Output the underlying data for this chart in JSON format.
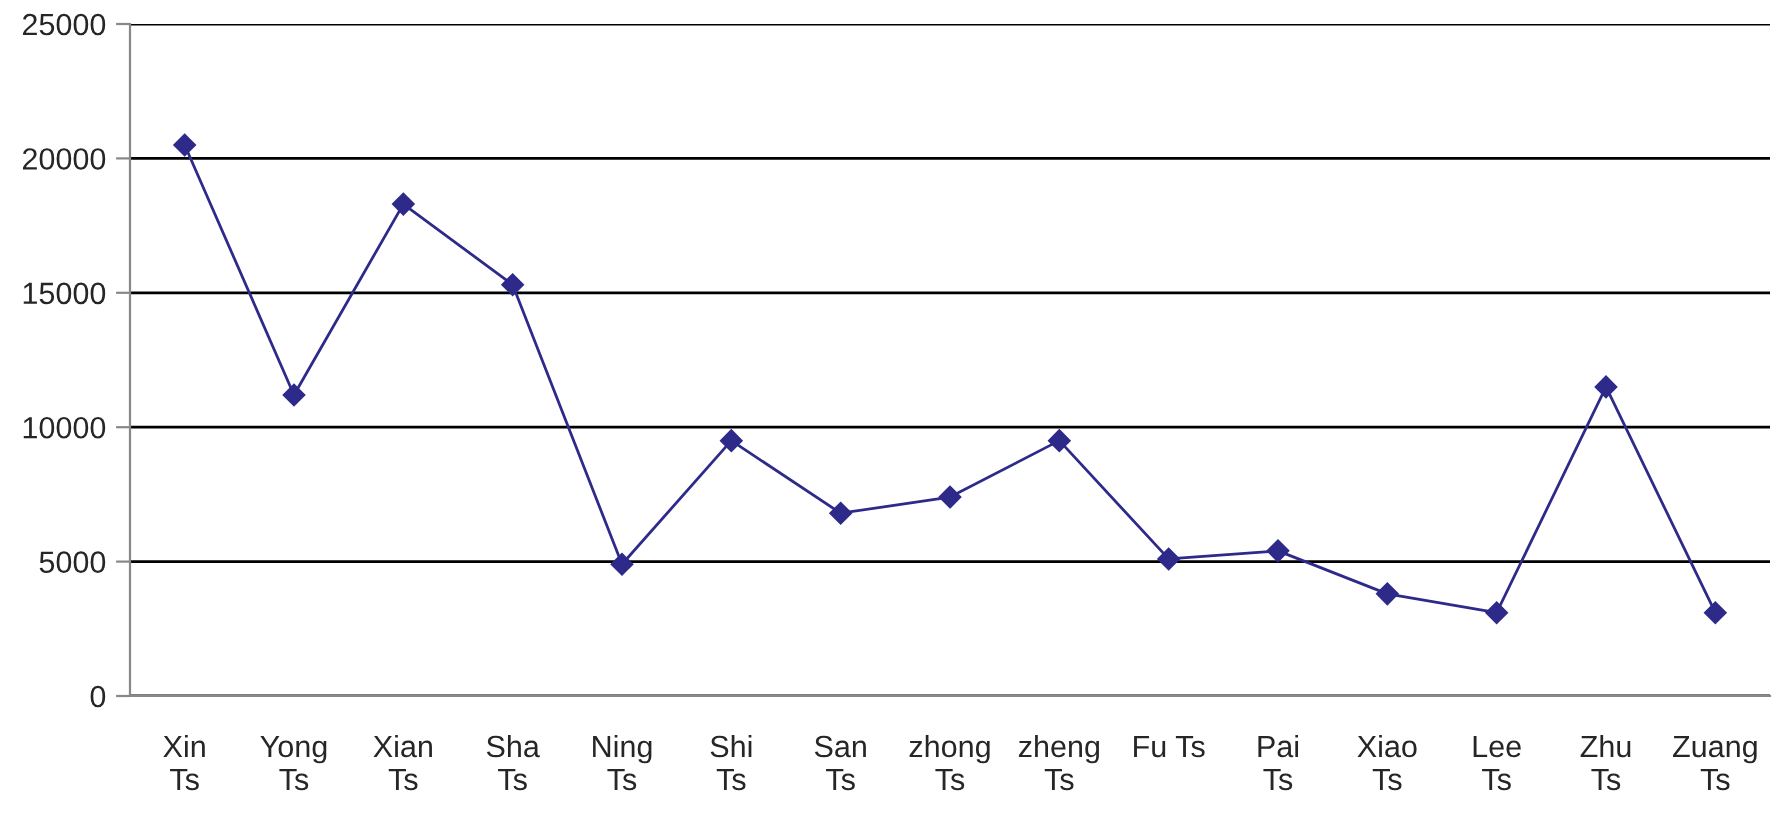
{
  "chart_data": {
    "type": "line",
    "categories": [
      "Xin Ts",
      "Yong Ts",
      "Xian Ts",
      "Sha Ts",
      "Ning Ts",
      "Shi Ts",
      "San Ts",
      "zhong Ts",
      "zheng Ts",
      "Fu Ts",
      "Pai Ts",
      "Xiao Ts",
      "Lee Ts",
      "Zhu Ts",
      "Zuang Ts"
    ],
    "series": [
      {
        "color": "#2e2a8a",
        "values": [
          20500,
          11200,
          18300,
          15300,
          4900,
          9500,
          6800,
          7400,
          9500,
          5100,
          5400,
          3800,
          3100,
          11500,
          3100
        ]
      }
    ],
    "ylim": [
      0,
      25000
    ],
    "yticks": [
      0,
      5000,
      10000,
      15000,
      20000,
      25000
    ],
    "grid": "y",
    "marker": "diamond",
    "line_style": "solid"
  }
}
